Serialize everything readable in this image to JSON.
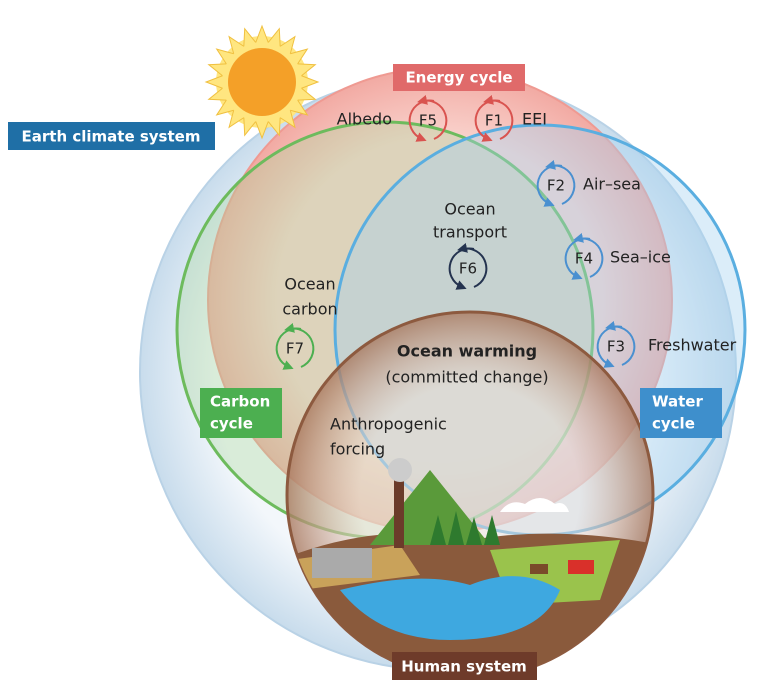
{
  "system_label": "Earth climate system",
  "cycles": {
    "energy": "Energy cycle",
    "carbon": [
      "Carbon",
      "cycle"
    ],
    "water": [
      "Water",
      "cycle"
    ],
    "human": "Human system"
  },
  "feedbacks": {
    "f1": {
      "code": "F1",
      "label": "EEI"
    },
    "f2": {
      "code": "F2",
      "label": "Air–sea"
    },
    "f3": {
      "code": "F3",
      "label": "Freshwater"
    },
    "f4": {
      "code": "F4",
      "label": "Sea–ice"
    },
    "f5": {
      "code": "F5",
      "label": "Albedo"
    },
    "f6": {
      "code": "F6",
      "label": [
        "Ocean",
        "transport"
      ]
    },
    "f7": {
      "code": "F7",
      "label": [
        "Ocean",
        "carbon"
      ]
    }
  },
  "center": {
    "title": "Ocean warming",
    "subtitle": "(committed change)"
  },
  "forcing": [
    "Anthropogenic",
    "forcing"
  ]
}
